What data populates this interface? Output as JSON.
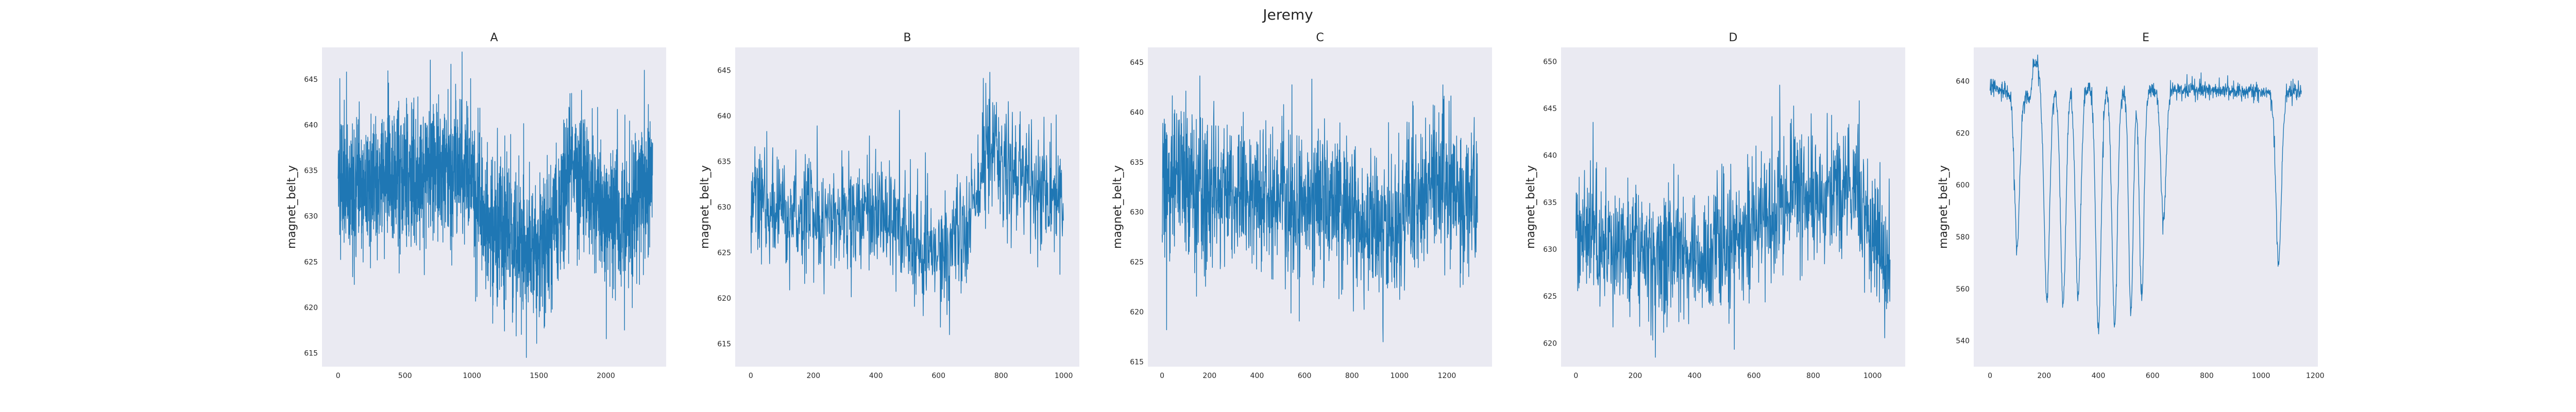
{
  "figure": {
    "suptitle": "Jeremy"
  },
  "style": {
    "facecolor": "#EAEAF2",
    "line_color": "#1F77B4",
    "grid": false
  },
  "chart_data": [
    {
      "type": "line",
      "title": "A",
      "xlabel": "",
      "ylabel": "magnet_belt_y",
      "xlim": [
        -120,
        2450
      ],
      "ylim": [
        613.5,
        648.5
      ],
      "xticks": [
        0,
        500,
        1000,
        1500,
        2000
      ],
      "yticks": [
        615,
        620,
        625,
        630,
        635,
        640,
        645
      ],
      "n_points": 2350,
      "noise": 3.5,
      "spike_prob": 0.08,
      "spike_amp": 5,
      "lo_clip": 614.5,
      "hi_clip": 648,
      "anchors": [
        [
          0,
          633
        ],
        [
          400,
          634
        ],
        [
          900,
          636
        ],
        [
          1000,
          634
        ],
        [
          1100,
          629
        ],
        [
          1400,
          627
        ],
        [
          1550,
          627
        ],
        [
          1750,
          635
        ],
        [
          2100,
          629
        ],
        [
          2350,
          635
        ]
      ]
    },
    {
      "type": "line",
      "title": "B",
      "xlabel": "",
      "ylabel": "magnet_belt_y",
      "xlim": [
        -50,
        1050
      ],
      "ylim": [
        612.5,
        647.5
      ],
      "xticks": [
        0,
        200,
        400,
        600,
        800,
        1000
      ],
      "yticks": [
        615,
        620,
        625,
        630,
        635,
        640,
        645
      ],
      "n_points": 1000,
      "noise": 3,
      "spike_prob": 0.08,
      "spike_amp": 5,
      "lo_clip": 613.5,
      "hi_clip": 647,
      "anchors": [
        [
          0,
          630
        ],
        [
          200,
          629
        ],
        [
          450,
          629
        ],
        [
          550,
          625
        ],
        [
          650,
          625
        ],
        [
          700,
          629
        ],
        [
          760,
          636
        ],
        [
          850,
          634
        ],
        [
          1000,
          630
        ]
      ]
    },
    {
      "type": "line",
      "title": "C",
      "xlabel": "",
      "ylabel": "magnet_belt_y",
      "xlim": [
        -60,
        1390
      ],
      "ylim": [
        614.5,
        646.5
      ],
      "xticks": [
        0,
        200,
        400,
        600,
        800,
        1000,
        1200
      ],
      "yticks": [
        615,
        620,
        625,
        630,
        635,
        640,
        645
      ],
      "n_points": 1330,
      "noise": 3.5,
      "spike_prob": 0.08,
      "spike_amp": 5,
      "lo_clip": 615.5,
      "hi_clip": 646,
      "anchors": [
        [
          0,
          633
        ],
        [
          300,
          632
        ],
        [
          600,
          631
        ],
        [
          800,
          630
        ],
        [
          950,
          628
        ],
        [
          1050,
          631
        ],
        [
          1150,
          633
        ],
        [
          1330,
          631
        ]
      ]
    },
    {
      "type": "line",
      "title": "D",
      "xlabel": "",
      "ylabel": "magnet_belt_y",
      "xlim": [
        -50,
        1110
      ],
      "ylim": [
        617.5,
        651.5
      ],
      "xticks": [
        0,
        200,
        400,
        600,
        800,
        1000
      ],
      "yticks": [
        620,
        625,
        630,
        635,
        640,
        645,
        650
      ],
      "n_points": 1060,
      "noise": 3.5,
      "spike_prob": 0.08,
      "spike_amp": 5,
      "lo_clip": 618.5,
      "hi_clip": 651,
      "anchors": [
        [
          0,
          632
        ],
        [
          200,
          630
        ],
        [
          400,
          629
        ],
        [
          600,
          632
        ],
        [
          750,
          637
        ],
        [
          950,
          636
        ],
        [
          1000,
          630
        ],
        [
          1060,
          629
        ]
      ]
    },
    {
      "type": "line",
      "title": "E",
      "xlabel": "",
      "ylabel": "magnet_belt_y",
      "xlim": [
        -60,
        1210
      ],
      "ylim": [
        530,
        653
      ],
      "xticks": [
        0,
        200,
        400,
        600,
        800,
        1000,
        1200
      ],
      "yticks": [
        540,
        560,
        580,
        600,
        620,
        640
      ],
      "n_points": 1150,
      "noise": 1.5,
      "spike_prob": 0.05,
      "spike_amp": 4,
      "lo_clip": 532,
      "hi_clip": 652,
      "anchors": [
        [
          0,
          638
        ],
        [
          150,
          634
        ],
        [
          160,
          646
        ],
        [
          180,
          646
        ],
        [
          190,
          636
        ],
        [
          300,
          637
        ],
        [
          320,
          637
        ],
        [
          1150,
          636
        ]
      ],
      "dips": [
        [
          100,
          14,
          58
        ],
        [
          210,
          14,
          80
        ],
        [
          270,
          14,
          83
        ],
        [
          325,
          14,
          80
        ],
        [
          400,
          14,
          93
        ],
        [
          460,
          14,
          90
        ],
        [
          520,
          12,
          85
        ],
        [
          560,
          12,
          80
        ],
        [
          640,
          14,
          50
        ],
        [
          1065,
          15,
          65
        ]
      ]
    }
  ]
}
